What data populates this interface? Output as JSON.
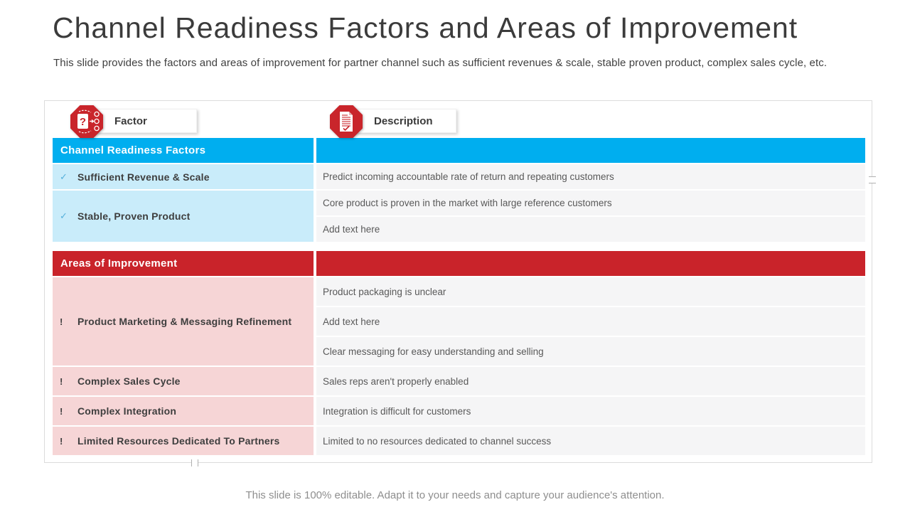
{
  "slide": {
    "title": "Channel Readiness Factors and Areas of Improvement",
    "subtitle": "This slide provides the factors and areas of improvement for partner channel such as sufficient revenues & scale, stable proven product, complex sales cycle, etc.",
    "footer": "This slide is 100% editable. Adapt it to your needs and capture your audience's attention."
  },
  "table": {
    "column_headers": [
      {
        "label": "Factor",
        "icon": "question-options-octagon-icon"
      },
      {
        "label": "Description",
        "icon": "document-check-octagon-icon"
      }
    ],
    "sections": [
      {
        "name": "readiness",
        "header": "Channel Readiness Factors",
        "marker": "✓",
        "rows": [
          {
            "factor": "Sufficient Revenue & Scale",
            "descriptions": [
              "Predict incoming accountable rate of return and repeating customers"
            ]
          },
          {
            "factor": "Stable, Proven Product",
            "descriptions": [
              "Core product is proven in the market with large reference customers",
              "Add text here"
            ]
          }
        ]
      },
      {
        "name": "improvement",
        "header": "Areas of Improvement",
        "marker": "!",
        "rows": [
          {
            "factor": "Product Marketing & Messaging Refinement",
            "descriptions": [
              "Product packaging is unclear",
              "Add text here",
              "Clear messaging for easy understanding and selling"
            ]
          },
          {
            "factor": "Complex Sales Cycle",
            "descriptions": [
              "Sales reps aren't properly enabled"
            ]
          },
          {
            "factor": "Complex Integration",
            "descriptions": [
              "Integration is difficult for customers"
            ]
          },
          {
            "factor": "Limited Resources Dedicated To Partners",
            "descriptions": [
              "Limited to no resources dedicated to channel success"
            ]
          }
        ]
      }
    ]
  },
  "colors": {
    "readiness_header_bg": "#00AEEF",
    "readiness_row_bg": "#C9ECFA",
    "improvement_header_bg": "#C9232A",
    "improvement_row_bg": "#F6D5D6",
    "description_cell_bg": "#F5F5F6",
    "icon_red": "#C9252B"
  }
}
